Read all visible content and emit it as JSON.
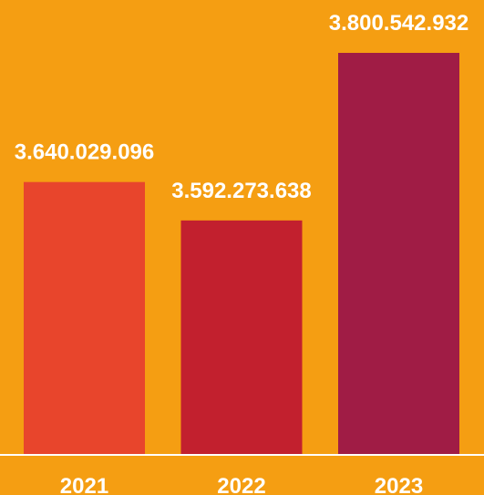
{
  "chart_data": {
    "type": "bar",
    "categories": [
      "2021",
      "2022",
      "2023"
    ],
    "values": [
      3640029096,
      3592273638,
      3800542932
    ],
    "value_labels": [
      "3.640.029.096",
      "3.592.273.638",
      "3.800.542.932"
    ],
    "bar_colors": [
      "#E8452C",
      "#C2202E",
      "#A01C45"
    ],
    "background_color": "#F59E12",
    "baseline_color": "#FFFFFF",
    "label_color": "#FFFFFF",
    "title": "",
    "xlabel": "",
    "ylabel": "",
    "grid": false,
    "legend": false
  }
}
